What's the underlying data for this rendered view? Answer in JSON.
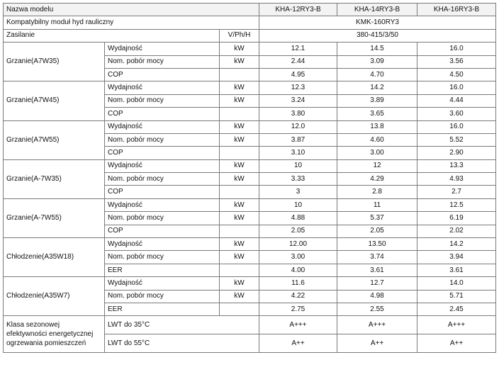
{
  "header": {
    "model_label": "Nazwa modelu",
    "models": [
      "KHA-12RY3-B",
      "KHA-14RY3-B",
      "KHA-16RY3-B"
    ]
  },
  "compatible": {
    "label": "Kompatybilny moduł hyd rauliczny",
    "value": "KMK-160RY3"
  },
  "power": {
    "label": "Zasilanie",
    "unit": "V/Ph/H",
    "value": "380-415/3/50"
  },
  "groups": [
    {
      "name": "Grzanie(A7W35)",
      "rows": [
        {
          "param": "Wydajność",
          "unit": "kW",
          "values": [
            "12.1",
            "14.5",
            "16.0"
          ]
        },
        {
          "param": "Nom. pobór mocy",
          "unit": "kW",
          "values": [
            "2.44",
            "3.09",
            "3.56"
          ]
        },
        {
          "param": "COP",
          "unit": "",
          "values": [
            "4.95",
            "4.70",
            "4.50"
          ]
        }
      ]
    },
    {
      "name": "Grzanie(A7W45)",
      "rows": [
        {
          "param": "Wydajność",
          "unit": "kW",
          "values": [
            "12.3",
            "14.2",
            "16.0"
          ]
        },
        {
          "param": "Nom. pobór mocy",
          "unit": "kW",
          "values": [
            "3.24",
            "3.89",
            "4.44"
          ]
        },
        {
          "param": "COP",
          "unit": "",
          "values": [
            "3.80",
            "3.65",
            "3.60"
          ]
        }
      ]
    },
    {
      "name": "Grzanie(A7W55)",
      "rows": [
        {
          "param": "Wydajność",
          "unit": "kW",
          "values": [
            "12.0",
            "13.8",
            "16.0"
          ]
        },
        {
          "param": "Nom. pobór mocy",
          "unit": "kW",
          "values": [
            "3.87",
            "4.60",
            "5.52"
          ]
        },
        {
          "param": "COP",
          "unit": "",
          "values": [
            "3.10",
            "3.00",
            "2.90"
          ]
        }
      ]
    },
    {
      "name": "Grzanie(A-7W35)",
      "rows": [
        {
          "param": "Wydajność",
          "unit": "kW",
          "values": [
            "10",
            "12",
            "13.3"
          ]
        },
        {
          "param": "Nom. pobór mocy",
          "unit": "kW",
          "values": [
            "3.33",
            "4.29",
            "4.93"
          ]
        },
        {
          "param": "COP",
          "unit": "",
          "values": [
            "3",
            "2.8",
            "2.7"
          ]
        }
      ]
    },
    {
      "name": "Grzanie(A-7W55)",
      "rows": [
        {
          "param": "Wydajność",
          "unit": "kW",
          "values": [
            "10",
            "11",
            "12.5"
          ]
        },
        {
          "param": "Nom. pobór mocy",
          "unit": "kW",
          "values": [
            "4.88",
            "5.37",
            "6.19"
          ]
        },
        {
          "param": "COP",
          "unit": "",
          "values": [
            "2.05",
            "2.05",
            "2.02"
          ]
        }
      ]
    },
    {
      "name": "Chłodzenie(A35W18)",
      "rows": [
        {
          "param": "Wydajność",
          "unit": "kW",
          "values": [
            "12.00",
            "13.50",
            "14.2"
          ]
        },
        {
          "param": "Nom. pobór mocy",
          "unit": "kW",
          "values": [
            "3.00",
            "3.74",
            "3.94"
          ]
        },
        {
          "param": "EER",
          "unit": "",
          "values": [
            "4.00",
            "3.61",
            "3.61"
          ]
        }
      ]
    },
    {
      "name": "Chłodzenie(A35W7)",
      "rows": [
        {
          "param": "Wydajność",
          "unit": "kW",
          "values": [
            "11.6",
            "12.7",
            "14.0"
          ]
        },
        {
          "param": "Nom. pobór mocy",
          "unit": "kW",
          "values": [
            "4.22",
            "4.98",
            "5.71"
          ]
        },
        {
          "param": "EER",
          "unit": "",
          "values": [
            "2.75",
            "2.55",
            "2.45"
          ]
        }
      ]
    }
  ],
  "seasonal": {
    "label": "Klasa sezonowej efektywności energetycznej ogrzewania pomieszczeń",
    "rows": [
      {
        "param": "LWT do 35°C",
        "values": [
          "A+++",
          "A+++",
          "A+++"
        ]
      },
      {
        "param": "LWT do 55°C",
        "values": [
          "A++",
          "A++",
          "A++"
        ]
      }
    ]
  }
}
